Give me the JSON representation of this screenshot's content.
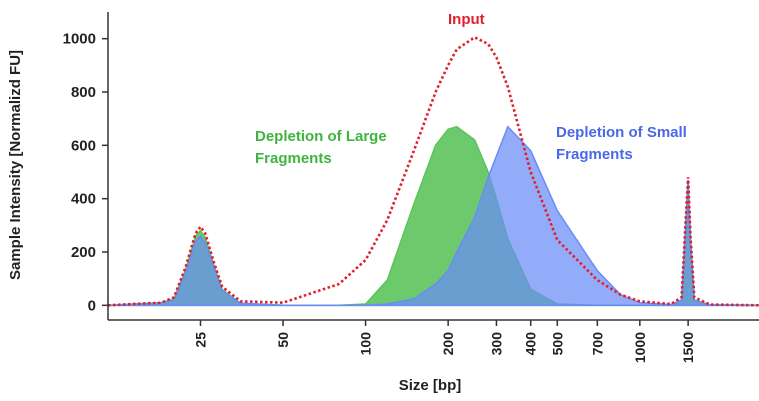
{
  "chart_data": {
    "type": "area",
    "x_label": "Size [bp]",
    "y_label": "Sample Intensity [Normalizd FU]",
    "xscale": "log",
    "xlim": [
      11.5,
      2720
    ],
    "ylim": [
      -55,
      1100
    ],
    "xticks": [
      25,
      50,
      100,
      200,
      300,
      400,
      500,
      700,
      1000,
      1500
    ],
    "yticks": [
      0,
      200,
      400,
      600,
      800,
      1000
    ],
    "x": [
      11.5,
      18,
      20,
      22,
      24,
      25,
      26,
      28,
      30,
      35,
      50,
      80,
      100,
      120,
      150,
      180,
      200,
      215,
      250,
      280,
      300,
      330,
      400,
      500,
      700,
      850,
      1000,
      1300,
      1420,
      1470,
      1500,
      1530,
      1580,
      1800,
      2720
    ],
    "series": [
      {
        "name": "Depletion of Large Fragments",
        "color": "#5cc45c",
        "style": "fill",
        "values": [
          0,
          10,
          25,
          130,
          260,
          280,
          255,
          150,
          60,
          8,
          0,
          0,
          5,
          95,
          380,
          600,
          660,
          670,
          620,
          500,
          400,
          250,
          60,
          5,
          0,
          0,
          0,
          0,
          20,
          300,
          470,
          250,
          20,
          2,
          0
        ]
      },
      {
        "name": "Depletion of Small Fragments",
        "color": "#6a8cf6",
        "style": "fill",
        "values": [
          0,
          10,
          20,
          120,
          240,
          260,
          235,
          140,
          55,
          8,
          0,
          0,
          0,
          5,
          25,
          80,
          130,
          200,
          330,
          480,
          560,
          670,
          580,
          355,
          130,
          40,
          10,
          3,
          20,
          300,
          470,
          250,
          20,
          2,
          0
        ]
      },
      {
        "name": "Input",
        "color": "#e0202a",
        "style": "dotted",
        "values": [
          0,
          10,
          30,
          140,
          270,
          295,
          270,
          160,
          70,
          15,
          10,
          80,
          170,
          320,
          580,
          800,
          900,
          960,
          1005,
          980,
          930,
          820,
          500,
          245,
          95,
          40,
          15,
          5,
          30,
          320,
          480,
          260,
          30,
          3,
          0
        ]
      }
    ]
  }
}
